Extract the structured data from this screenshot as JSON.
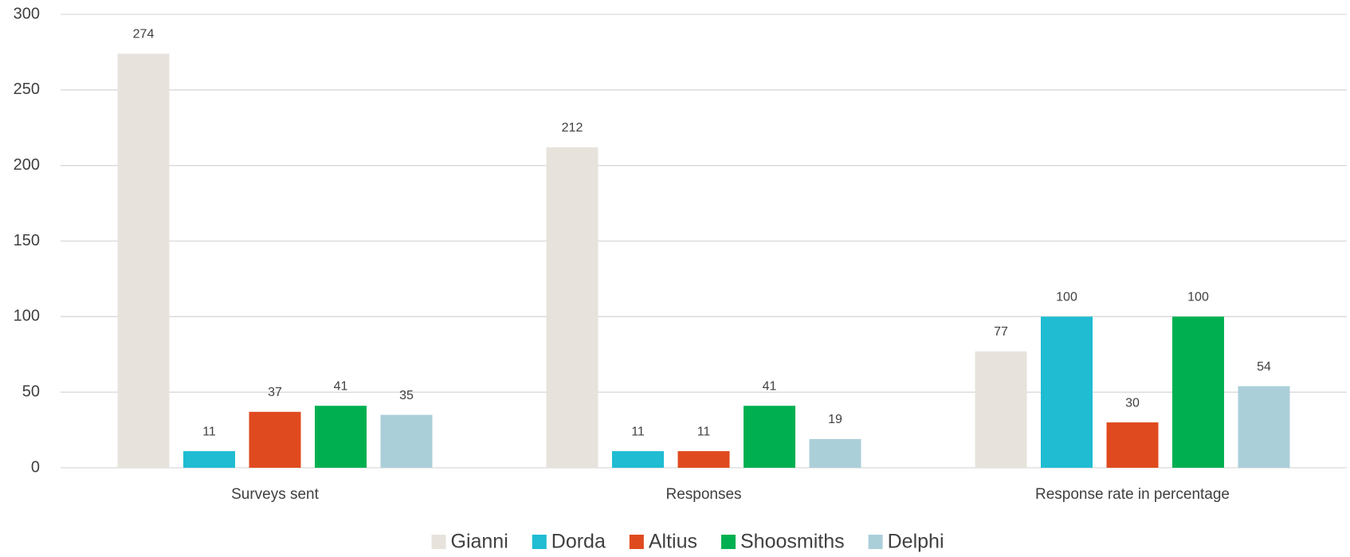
{
  "chart_data": {
    "type": "bar",
    "categories": [
      "Surveys sent",
      "Responses",
      "Response rate in percentage"
    ],
    "series": [
      {
        "name": "Gianni",
        "color": "#e7e3dc",
        "values": [
          274,
          212,
          77
        ]
      },
      {
        "name": "Dorda",
        "color": "#1fbcd2",
        "values": [
          11,
          11,
          100
        ]
      },
      {
        "name": "Altius",
        "color": "#e04a1f",
        "values": [
          37,
          11,
          30
        ]
      },
      {
        "name": "Shoosmiths",
        "color": "#00b050",
        "values": [
          41,
          41,
          100
        ]
      },
      {
        "name": "Delphi",
        "color": "#abcfd9",
        "values": [
          35,
          19,
          54
        ]
      }
    ],
    "ylim": [
      0,
      300
    ],
    "yticks": [
      0,
      50,
      100,
      150,
      200,
      250,
      300
    ],
    "grid": true,
    "legend": "bottom"
  }
}
